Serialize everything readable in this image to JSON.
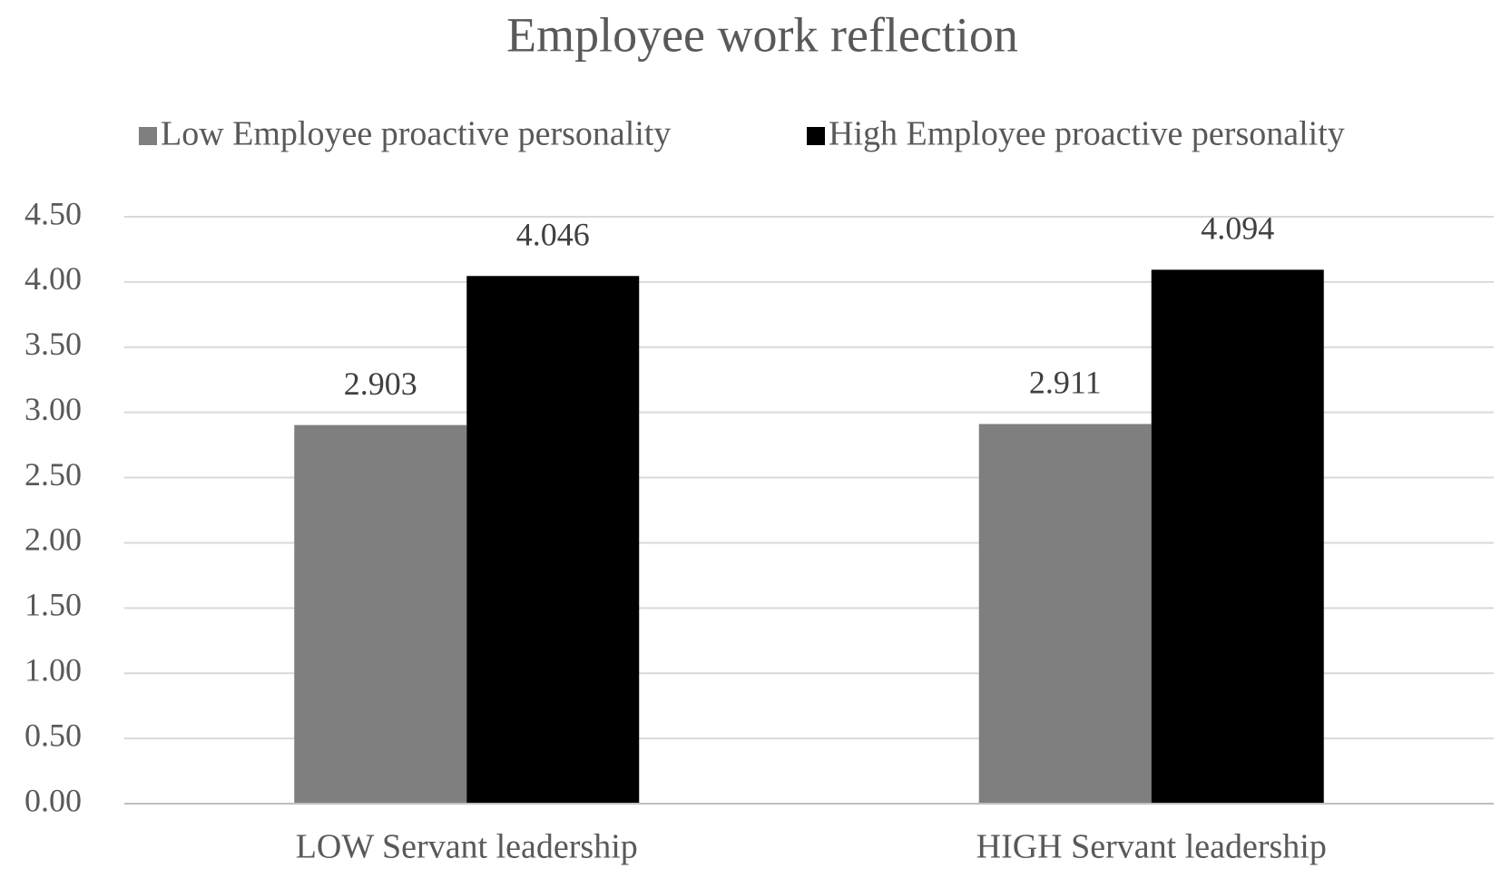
{
  "chart_data": {
    "type": "bar",
    "title": "Employee work reflection",
    "categories": [
      "LOW Servant leadership",
      "HIGH Servant leadership"
    ],
    "series": [
      {
        "name": "Low Employee proactive personality",
        "color": "#7f7f7f",
        "values": [
          2.903,
          2.911
        ]
      },
      {
        "name": "High Employee proactive personality",
        "color": "#000000",
        "values": [
          4.046,
          4.094
        ]
      }
    ],
    "ylim": [
      0,
      4.5
    ],
    "yticks": [
      {
        "value": 0,
        "label": "0.00"
      },
      {
        "value": 0.5,
        "label": "0.50"
      },
      {
        "value": 1,
        "label": "1.00"
      },
      {
        "value": 1.5,
        "label": "1.50"
      },
      {
        "value": 2,
        "label": "2.00"
      },
      {
        "value": 2.5,
        "label": "2.50"
      },
      {
        "value": 3,
        "label": "3.00"
      },
      {
        "value": 3.5,
        "label": "3.50"
      },
      {
        "value": 4,
        "label": "4.00"
      },
      {
        "value": 4.5,
        "label": "4.50"
      }
    ],
    "grid": true,
    "legend": "top"
  }
}
